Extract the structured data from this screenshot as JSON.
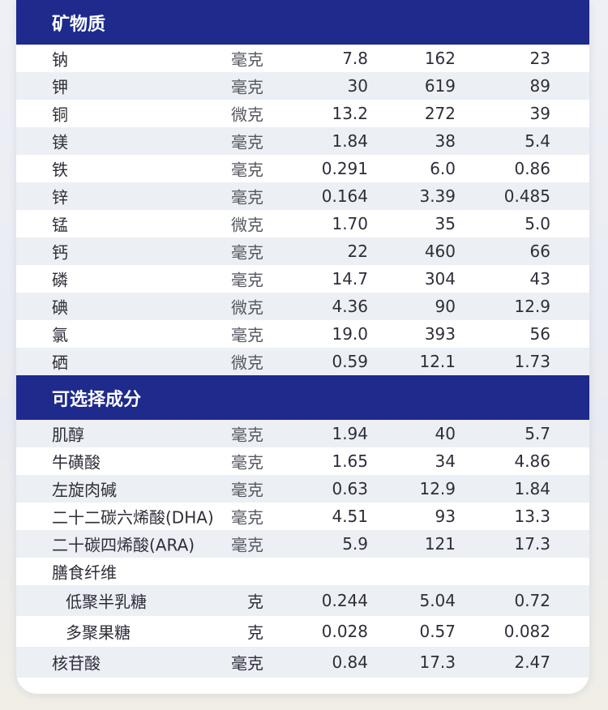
{
  "sections": [
    {
      "title": "矿物质",
      "rows": [
        {
          "name": "钠",
          "unit": "毫克",
          "v1": "7.8",
          "v2": "162",
          "v3": "23"
        },
        {
          "name": "钾",
          "unit": "毫克",
          "v1": "30",
          "v2": "619",
          "v3": "89"
        },
        {
          "name": "铜",
          "unit": "微克",
          "v1": "13.2",
          "v2": "272",
          "v3": "39"
        },
        {
          "name": "镁",
          "unit": "毫克",
          "v1": "1.84",
          "v2": "38",
          "v3": "5.4"
        },
        {
          "name": "铁",
          "unit": "毫克",
          "v1": "0.291",
          "v2": "6.0",
          "v3": "0.86"
        },
        {
          "name": "锌",
          "unit": "毫克",
          "v1": "0.164",
          "v2": "3.39",
          "v3": "0.485"
        },
        {
          "name": "锰",
          "unit": "微克",
          "v1": "1.70",
          "v2": "35",
          "v3": "5.0"
        },
        {
          "name": "钙",
          "unit": "毫克",
          "v1": "22",
          "v2": "460",
          "v3": "66"
        },
        {
          "name": "磷",
          "unit": "毫克",
          "v1": "14.7",
          "v2": "304",
          "v3": "43"
        },
        {
          "name": "碘",
          "unit": "微克",
          "v1": "4.36",
          "v2": "90",
          "v3": "12.9"
        },
        {
          "name": "氯",
          "unit": "毫克",
          "v1": "19.0",
          "v2": "393",
          "v3": "56"
        },
        {
          "name": "硒",
          "unit": "微克",
          "v1": "0.59",
          "v2": "12.1",
          "v3": "1.73"
        }
      ]
    },
    {
      "title": "可选择成分",
      "rows": [
        {
          "name": "肌醇",
          "unit": "毫克",
          "v1": "1.94",
          "v2": "40",
          "v3": "5.7"
        },
        {
          "name": "牛磺酸",
          "unit": "毫克",
          "v1": "1.65",
          "v2": "34",
          "v3": "4.86"
        },
        {
          "name": "左旋肉碱",
          "unit": "毫克",
          "v1": "0.63",
          "v2": "12.9",
          "v3": "1.84"
        },
        {
          "name": "二十二碳六烯酸(DHA)",
          "unit": "毫克",
          "v1": "4.51",
          "v2": "93",
          "v3": "13.3"
        },
        {
          "name": "二十碳四烯酸(ARA)",
          "unit": "毫克",
          "v1": "5.9",
          "v2": "121",
          "v3": "17.3"
        },
        {
          "name": "膳食纤维",
          "unit": "",
          "v1": "",
          "v2": "",
          "v3": ""
        },
        {
          "name": "低聚半乳糖",
          "unit": "克",
          "v1": "0.244",
          "v2": "5.04",
          "v3": "0.72",
          "sub": true
        },
        {
          "name": "多聚果糖",
          "unit": "克",
          "v1": "0.028",
          "v2": "0.57",
          "v3": "0.082",
          "sub": true
        },
        {
          "name": "核苷酸",
          "unit": "毫克",
          "v1": "0.84",
          "v2": "17.3",
          "v3": "2.47"
        }
      ]
    }
  ]
}
